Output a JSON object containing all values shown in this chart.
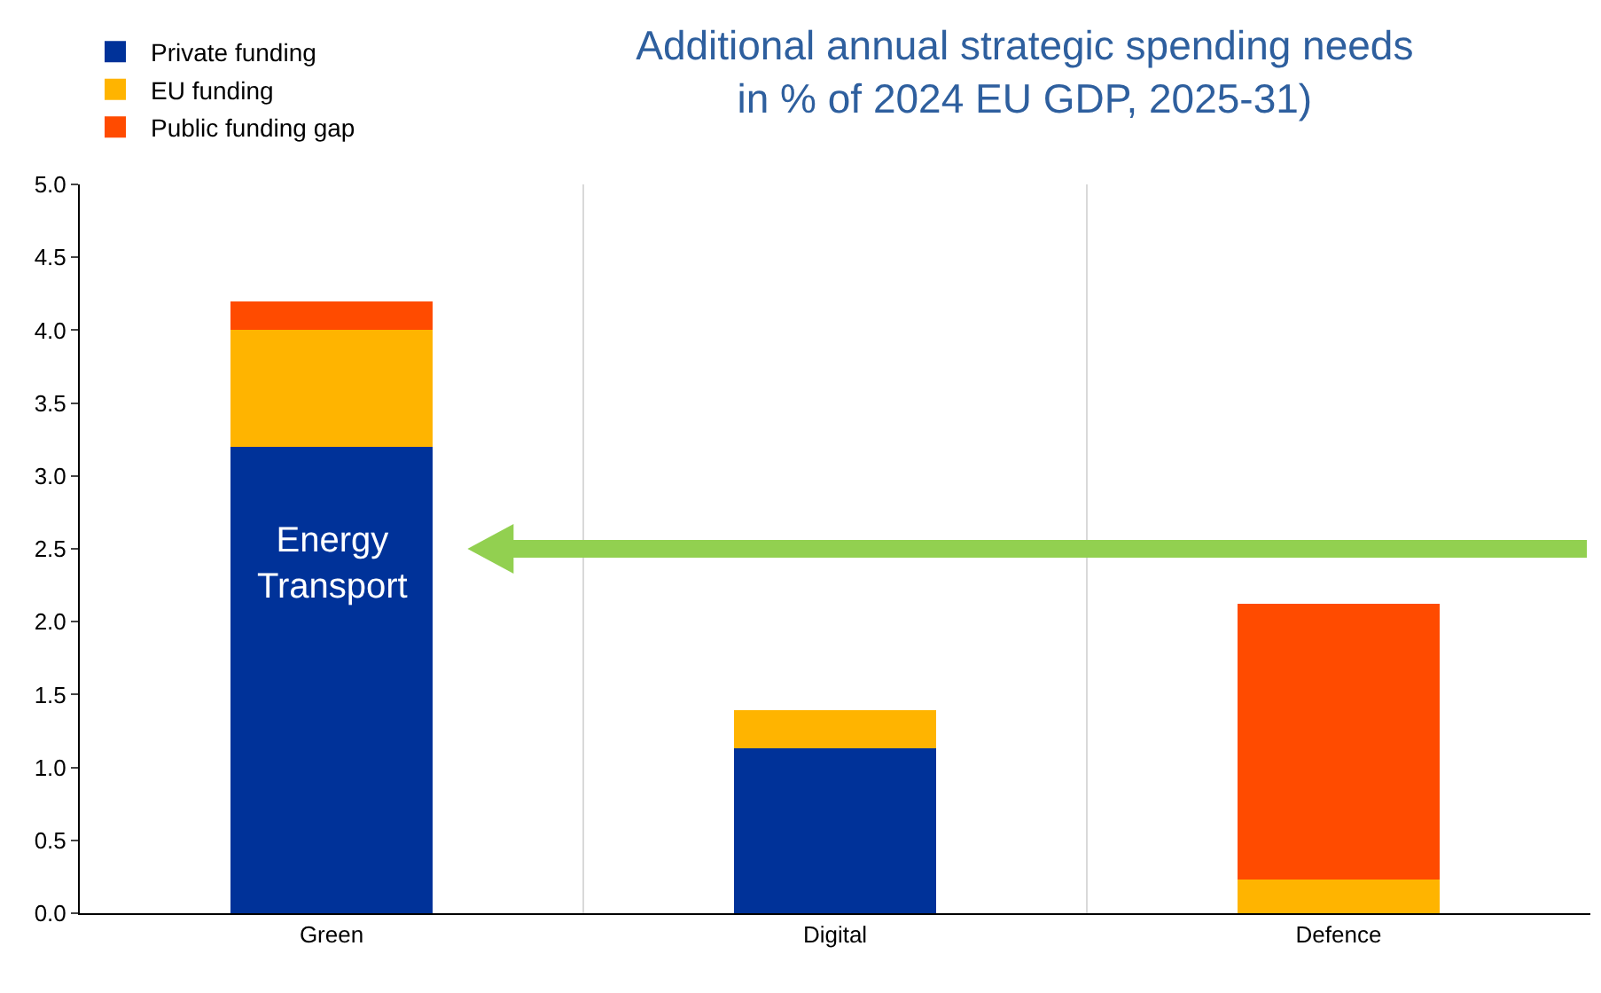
{
  "chart_data": {
    "type": "bar",
    "title": "Additional annual strategic spending needs\nin % of 2024 EU GDP, 2025-31)",
    "categories": [
      "Green",
      "Digital",
      "Defence"
    ],
    "stacked": true,
    "series": [
      {
        "name": "Private funding",
        "color": "#003299",
        "values": [
          3.2,
          1.13,
          0
        ]
      },
      {
        "name": "EU funding",
        "color": "#ffb400",
        "values": [
          0.8,
          0.26,
          0.23
        ]
      },
      {
        "name": "Public funding gap",
        "color": "#ff4b00",
        "values": [
          0.2,
          0,
          1.89
        ]
      }
    ],
    "ylim": [
      0,
      5
    ],
    "yticks": [
      {
        "value": 0,
        "label": "0.0"
      },
      0.5,
      {
        "value": 1,
        "label": "1.0"
      },
      1.5,
      {
        "value": 2,
        "label": "2.0"
      },
      2.5,
      {
        "value": 3,
        "label": "3.0"
      },
      3.5,
      {
        "value": 4,
        "label": "4.0"
      },
      4.5,
      {
        "value": 5,
        "label": "5.0"
      }
    ],
    "grid": "x",
    "legend": "top left",
    "annotations": [
      "Energy\nTransport"
    ]
  }
}
